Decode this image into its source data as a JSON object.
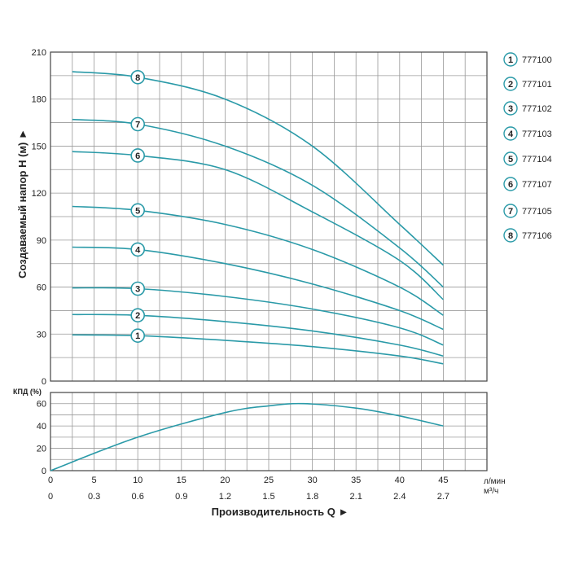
{
  "chart_data": [
    {
      "type": "line",
      "name_role": "head-curves",
      "ylabel": "Создаваемый напор H (м) ►",
      "ylim": [
        0,
        210
      ],
      "yticks": [
        0,
        30,
        60,
        90,
        120,
        150,
        180,
        210
      ],
      "xlim": [
        0,
        50
      ],
      "grid": true,
      "legend_position": "right",
      "series": [
        {
          "name": "777100",
          "marker": "1",
          "x": [
            2.5,
            10,
            20,
            30,
            40,
            45
          ],
          "values": [
            29.5,
            29,
            26,
            22,
            16,
            11
          ]
        },
        {
          "name": "777101",
          "marker": "2",
          "x": [
            2.5,
            10,
            20,
            30,
            40,
            45
          ],
          "values": [
            42.5,
            42,
            38,
            32,
            23,
            16
          ]
        },
        {
          "name": "777102",
          "marker": "3",
          "x": [
            2.5,
            10,
            20,
            30,
            40,
            45
          ],
          "values": [
            59.5,
            59,
            54,
            46,
            34,
            23
          ]
        },
        {
          "name": "777103",
          "marker": "4",
          "x": [
            2.5,
            10,
            20,
            30,
            40,
            45
          ],
          "values": [
            85.5,
            84,
            75,
            62,
            45,
            33
          ]
        },
        {
          "name": "777104",
          "marker": "5",
          "x": [
            2.5,
            10,
            20,
            30,
            40,
            45
          ],
          "values": [
            111.5,
            109,
            100,
            84,
            60,
            42
          ]
        },
        {
          "name": "777107",
          "marker": "6",
          "x": [
            2.5,
            10,
            20,
            30,
            40,
            45
          ],
          "values": [
            146.5,
            144,
            135,
            108,
            77,
            52
          ]
        },
        {
          "name": "777105",
          "marker": "7",
          "x": [
            2.5,
            10,
            20,
            30,
            40,
            45
          ],
          "values": [
            167,
            164,
            150,
            125,
            85,
            60
          ]
        },
        {
          "name": "777106",
          "marker": "8",
          "x": [
            2.5,
            10,
            20,
            30,
            40,
            45
          ],
          "values": [
            197.5,
            194,
            180,
            150,
            100,
            74
          ]
        }
      ]
    },
    {
      "type": "line",
      "name_role": "efficiency-curve",
      "ylabel": "КПД (%)",
      "ylim": [
        0,
        70
      ],
      "yticks": [
        0,
        20,
        40,
        60
      ],
      "xlim": [
        0,
        50
      ],
      "grid": true,
      "series": [
        {
          "x": [
            0,
            10,
            20,
            25,
            29,
            35,
            40,
            45
          ],
          "values": [
            0,
            30,
            52,
            58,
            60,
            56,
            49,
            40
          ]
        }
      ]
    }
  ],
  "x_axis": {
    "primary_unit": "л/мин",
    "primary_ticks": [
      "0",
      "5",
      "10",
      "15",
      "20",
      "25",
      "30",
      "35",
      "40",
      "45"
    ],
    "primary_values": [
      0,
      5,
      10,
      15,
      20,
      25,
      30,
      35,
      40,
      45
    ],
    "secondary_unit": "м³/ч",
    "secondary_ticks": [
      "0",
      "0.3",
      "0.6",
      "0.9",
      "1.2",
      "1.5",
      "1.8",
      "2.1",
      "2.4",
      "2.7"
    ],
    "secondary_values": [
      0,
      0.3,
      0.6,
      0.9,
      1.2,
      1.5,
      1.8,
      2.1,
      2.4,
      2.7
    ],
    "title": "Производительность Q ►"
  },
  "legend": {
    "items": [
      {
        "marker": "1",
        "label": "777100"
      },
      {
        "marker": "2",
        "label": "777101"
      },
      {
        "marker": "3",
        "label": "777102"
      },
      {
        "marker": "4",
        "label": "777103"
      },
      {
        "marker": "5",
        "label": "777104"
      },
      {
        "marker": "6",
        "label": "777107"
      },
      {
        "marker": "7",
        "label": "777105"
      },
      {
        "marker": "8",
        "label": "777106"
      }
    ]
  },
  "colors": {
    "curve": "#2a9aa8",
    "grid": "#999999",
    "frame": "#444444",
    "marker_ring": "#2a9aa8",
    "text": "#222222"
  }
}
